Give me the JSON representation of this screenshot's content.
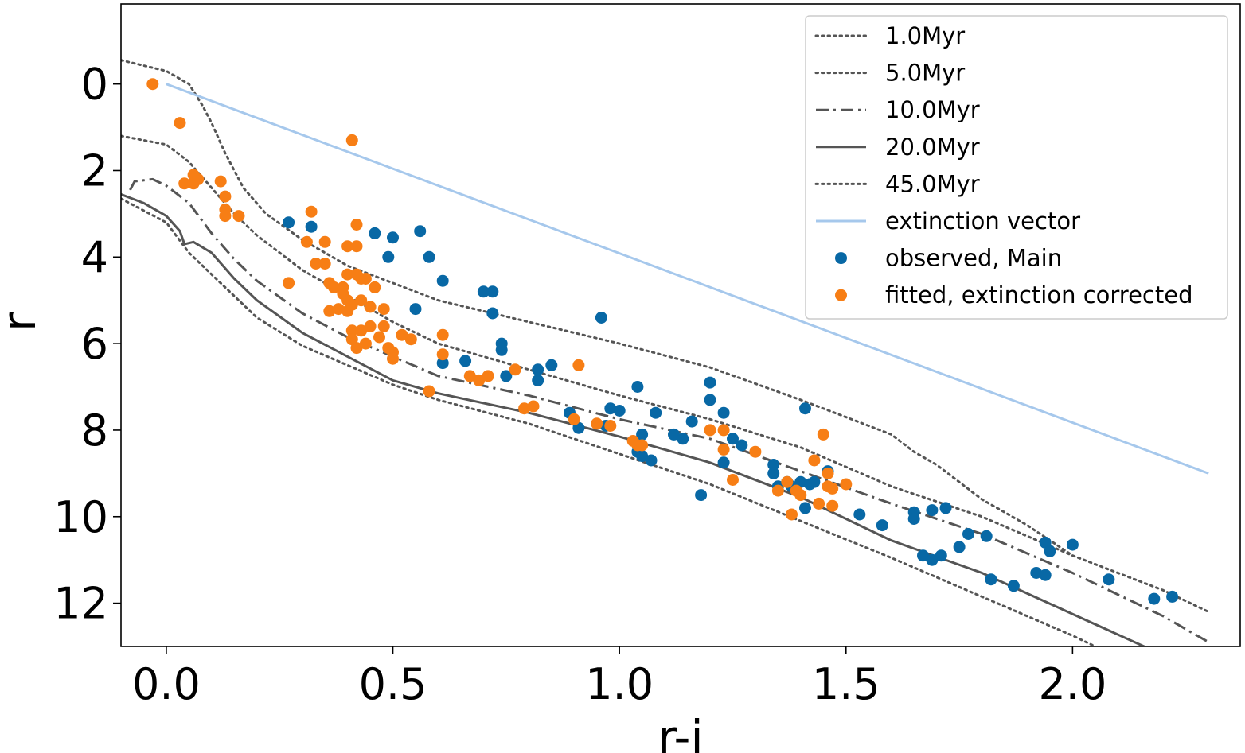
{
  "chart_data": {
    "type": "scatter",
    "title": "",
    "xlabel": "r-i",
    "ylabel": "r",
    "xlim": [
      -0.1,
      2.37
    ],
    "ylim": [
      13.0,
      -1.85
    ],
    "y_inverted": true,
    "legend_position": "upper right",
    "x_ticks": [
      0.0,
      0.5,
      1.0,
      1.5,
      2.0
    ],
    "x_tick_labels": [
      "0.0",
      "0.5",
      "1.0",
      "1.5",
      "2.0"
    ],
    "y_ticks": [
      0,
      2,
      4,
      6,
      8,
      10,
      12
    ],
    "y_tick_labels": [
      "0",
      "2",
      "4",
      "6",
      "8",
      "10",
      "12"
    ],
    "colors": {
      "isochrone": "#555555",
      "extinction": "#a6c8ec",
      "observed": "#0868a5",
      "fitted": "#f77e15"
    },
    "lines": [
      {
        "name": "1.0Myr",
        "style": "dotted",
        "points": [
          [
            -0.1,
            -0.55
          ],
          [
            0.0,
            -0.3
          ],
          [
            0.05,
            0.0
          ],
          [
            0.08,
            0.5
          ],
          [
            0.1,
            0.9
          ],
          [
            0.13,
            1.6
          ],
          [
            0.17,
            2.4
          ],
          [
            0.22,
            3.0
          ],
          [
            0.3,
            3.6
          ],
          [
            0.4,
            4.2
          ],
          [
            0.5,
            4.6
          ],
          [
            0.6,
            5.0
          ],
          [
            0.8,
            5.5
          ],
          [
            1.0,
            6.0
          ],
          [
            1.2,
            6.55
          ],
          [
            1.4,
            7.3
          ],
          [
            1.5,
            7.7
          ],
          [
            1.6,
            8.1
          ],
          [
            1.65,
            8.5
          ],
          [
            1.7,
            8.8
          ],
          [
            1.8,
            9.6
          ],
          [
            1.9,
            10.2
          ],
          [
            2.0,
            10.9
          ]
        ]
      },
      {
        "name": "5.0Myr",
        "style": "dotted",
        "points": [
          [
            -0.1,
            1.2
          ],
          [
            0.0,
            1.4
          ],
          [
            0.05,
            1.8
          ],
          [
            0.1,
            2.4
          ],
          [
            0.15,
            3.0
          ],
          [
            0.2,
            3.5
          ],
          [
            0.3,
            4.3
          ],
          [
            0.4,
            4.9
          ],
          [
            0.5,
            5.5
          ],
          [
            0.6,
            6.0
          ],
          [
            0.7,
            6.3
          ],
          [
            0.8,
            6.6
          ],
          [
            1.0,
            7.2
          ],
          [
            1.2,
            7.75
          ],
          [
            1.4,
            8.4
          ],
          [
            1.6,
            9.3
          ],
          [
            1.8,
            10.0
          ],
          [
            2.0,
            10.9
          ],
          [
            2.2,
            11.7
          ],
          [
            2.3,
            12.2
          ]
        ]
      },
      {
        "name": "10.0Myr",
        "style": "dashdot",
        "points": [
          [
            -0.08,
            2.45
          ],
          [
            -0.07,
            2.25
          ],
          [
            -0.03,
            2.2
          ],
          [
            0.0,
            2.35
          ],
          [
            0.05,
            2.75
          ],
          [
            0.1,
            3.45
          ],
          [
            0.15,
            4.05
          ],
          [
            0.2,
            4.55
          ],
          [
            0.3,
            5.3
          ],
          [
            0.4,
            5.85
          ],
          [
            0.5,
            6.3
          ],
          [
            0.6,
            6.75
          ],
          [
            0.8,
            7.2
          ],
          [
            1.0,
            7.75
          ],
          [
            1.2,
            8.2
          ],
          [
            1.4,
            8.95
          ],
          [
            1.6,
            9.7
          ],
          [
            1.8,
            10.4
          ],
          [
            2.0,
            11.3
          ],
          [
            2.2,
            12.3
          ],
          [
            2.3,
            12.9
          ]
        ]
      },
      {
        "name": "20.0Myr",
        "style": "solid",
        "points": [
          [
            -0.1,
            2.55
          ],
          [
            -0.05,
            2.75
          ],
          [
            0.0,
            3.05
          ],
          [
            0.03,
            3.4
          ],
          [
            0.04,
            3.7
          ],
          [
            0.06,
            3.65
          ],
          [
            0.1,
            3.9
          ],
          [
            0.15,
            4.5
          ],
          [
            0.2,
            5.0
          ],
          [
            0.3,
            5.75
          ],
          [
            0.4,
            6.3
          ],
          [
            0.5,
            6.85
          ],
          [
            0.6,
            7.15
          ],
          [
            0.8,
            7.6
          ],
          [
            1.0,
            8.15
          ],
          [
            1.2,
            8.75
          ],
          [
            1.4,
            9.55
          ],
          [
            1.6,
            10.55
          ],
          [
            1.8,
            11.3
          ],
          [
            2.0,
            12.25
          ],
          [
            2.2,
            13.2
          ]
        ]
      },
      {
        "name": "45.0Myr",
        "style": "dotted",
        "points": [
          [
            -0.1,
            2.65
          ],
          [
            0.0,
            3.2
          ],
          [
            0.05,
            3.9
          ],
          [
            0.1,
            4.4
          ],
          [
            0.2,
            5.4
          ],
          [
            0.3,
            6.05
          ],
          [
            0.4,
            6.5
          ],
          [
            0.5,
            6.95
          ],
          [
            0.6,
            7.3
          ],
          [
            0.8,
            7.85
          ],
          [
            1.0,
            8.55
          ],
          [
            1.2,
            9.25
          ],
          [
            1.4,
            10.1
          ],
          [
            1.6,
            10.95
          ],
          [
            1.8,
            11.85
          ],
          [
            2.0,
            12.75
          ],
          [
            2.05,
            13.0
          ]
        ]
      },
      {
        "name": "extinction vector",
        "style": "extinction",
        "points": [
          [
            0.0,
            0.0
          ],
          [
            2.3,
            9.0
          ]
        ]
      }
    ],
    "series": [
      {
        "name": "observed, Main",
        "kind": "scatter",
        "points": [
          [
            0.27,
            3.2
          ],
          [
            0.32,
            3.3
          ],
          [
            0.46,
            3.45
          ],
          [
            0.49,
            4.0
          ],
          [
            0.5,
            3.55
          ],
          [
            0.56,
            3.4
          ],
          [
            0.58,
            4.0
          ],
          [
            0.55,
            5.2
          ],
          [
            0.61,
            4.55
          ],
          [
            0.61,
            6.45
          ],
          [
            0.66,
            6.4
          ],
          [
            0.7,
            4.8
          ],
          [
            0.72,
            4.8
          ],
          [
            0.72,
            5.3
          ],
          [
            0.74,
            6.0
          ],
          [
            0.74,
            6.15
          ],
          [
            0.75,
            6.75
          ],
          [
            0.82,
            6.6
          ],
          [
            0.82,
            6.85
          ],
          [
            0.85,
            6.5
          ],
          [
            0.89,
            7.6
          ],
          [
            0.91,
            7.95
          ],
          [
            0.96,
            5.4
          ],
          [
            0.97,
            7.9
          ],
          [
            0.98,
            7.5
          ],
          [
            1.0,
            7.55
          ],
          [
            1.04,
            7.0
          ],
          [
            1.04,
            8.5
          ],
          [
            1.05,
            8.1
          ],
          [
            1.05,
            8.6
          ],
          [
            1.07,
            8.7
          ],
          [
            1.08,
            7.6
          ],
          [
            1.12,
            8.1
          ],
          [
            1.14,
            8.2
          ],
          [
            1.16,
            7.8
          ],
          [
            1.18,
            9.5
          ],
          [
            1.2,
            6.9
          ],
          [
            1.2,
            7.3
          ],
          [
            1.23,
            7.6
          ],
          [
            1.23,
            8.75
          ],
          [
            1.25,
            8.2
          ],
          [
            1.27,
            8.35
          ],
          [
            1.34,
            8.8
          ],
          [
            1.34,
            9.0
          ],
          [
            1.35,
            9.3
          ],
          [
            1.37,
            9.2
          ],
          [
            1.38,
            9.3
          ],
          [
            1.4,
            9.2
          ],
          [
            1.41,
            7.5
          ],
          [
            1.41,
            9.8
          ],
          [
            1.42,
            9.25
          ],
          [
            1.43,
            9.2
          ],
          [
            1.46,
            8.95
          ],
          [
            1.53,
            9.95
          ],
          [
            1.58,
            10.2
          ],
          [
            1.65,
            9.9
          ],
          [
            1.65,
            10.05
          ],
          [
            1.67,
            10.9
          ],
          [
            1.69,
            11.0
          ],
          [
            1.69,
            9.85
          ],
          [
            1.71,
            10.9
          ],
          [
            1.72,
            9.8
          ],
          [
            1.75,
            10.7
          ],
          [
            1.77,
            10.4
          ],
          [
            1.81,
            10.45
          ],
          [
            1.82,
            11.45
          ],
          [
            1.87,
            11.6
          ],
          [
            1.92,
            11.3
          ],
          [
            1.94,
            11.35
          ],
          [
            1.94,
            10.6
          ],
          [
            1.95,
            10.8
          ],
          [
            2.0,
            10.65
          ],
          [
            2.08,
            11.45
          ],
          [
            2.18,
            11.9
          ],
          [
            2.22,
            11.85
          ]
        ]
      },
      {
        "name": "fitted, extinction corrected",
        "kind": "scatter",
        "points": [
          [
            -0.03,
            0.0
          ],
          [
            0.03,
            0.9
          ],
          [
            0.04,
            2.3
          ],
          [
            0.06,
            2.3
          ],
          [
            0.06,
            2.1
          ],
          [
            0.07,
            2.2
          ],
          [
            0.12,
            2.25
          ],
          [
            0.13,
            2.6
          ],
          [
            0.13,
            2.9
          ],
          [
            0.13,
            3.05
          ],
          [
            0.16,
            3.05
          ],
          [
            0.41,
            1.3
          ],
          [
            0.27,
            4.6
          ],
          [
            0.31,
            3.65
          ],
          [
            0.32,
            2.95
          ],
          [
            0.33,
            4.15
          ],
          [
            0.35,
            3.65
          ],
          [
            0.35,
            4.15
          ],
          [
            0.36,
            4.6
          ],
          [
            0.36,
            5.25
          ],
          [
            0.37,
            4.7
          ],
          [
            0.38,
            5.2
          ],
          [
            0.39,
            4.7
          ],
          [
            0.39,
            4.85
          ],
          [
            0.4,
            4.4
          ],
          [
            0.4,
            5.0
          ],
          [
            0.4,
            5.25
          ],
          [
            0.4,
            3.75
          ],
          [
            0.41,
            5.1
          ],
          [
            0.41,
            5.7
          ],
          [
            0.41,
            5.9
          ],
          [
            0.42,
            6.1
          ],
          [
            0.42,
            3.25
          ],
          [
            0.42,
            3.75
          ],
          [
            0.42,
            4.4
          ],
          [
            0.43,
            4.5
          ],
          [
            0.43,
            5.0
          ],
          [
            0.43,
            5.7
          ],
          [
            0.44,
            6.0
          ],
          [
            0.44,
            4.5
          ],
          [
            0.45,
            5.6
          ],
          [
            0.45,
            5.15
          ],
          [
            0.46,
            4.7
          ],
          [
            0.47,
            5.85
          ],
          [
            0.48,
            5.6
          ],
          [
            0.48,
            5.2
          ],
          [
            0.49,
            6.1
          ],
          [
            0.5,
            6.2
          ],
          [
            0.5,
            6.35
          ],
          [
            0.52,
            5.8
          ],
          [
            0.54,
            5.9
          ],
          [
            0.58,
            7.1
          ],
          [
            0.61,
            5.8
          ],
          [
            0.61,
            6.25
          ],
          [
            0.67,
            6.75
          ],
          [
            0.69,
            6.85
          ],
          [
            0.71,
            6.75
          ],
          [
            0.77,
            6.6
          ],
          [
            0.79,
            7.5
          ],
          [
            0.81,
            7.45
          ],
          [
            0.9,
            7.75
          ],
          [
            0.91,
            6.5
          ],
          [
            0.95,
            7.85
          ],
          [
            0.98,
            7.9
          ],
          [
            1.03,
            8.25
          ],
          [
            1.04,
            8.35
          ],
          [
            1.05,
            8.35
          ],
          [
            1.2,
            8.0
          ],
          [
            1.23,
            8.0
          ],
          [
            1.23,
            8.45
          ],
          [
            1.25,
            9.15
          ],
          [
            1.3,
            8.5
          ],
          [
            1.35,
            9.4
          ],
          [
            1.37,
            9.2
          ],
          [
            1.38,
            9.95
          ],
          [
            1.39,
            9.4
          ],
          [
            1.4,
            9.5
          ],
          [
            1.43,
            8.7
          ],
          [
            1.44,
            9.7
          ],
          [
            1.45,
            8.1
          ],
          [
            1.46,
            9.0
          ],
          [
            1.46,
            9.3
          ],
          [
            1.47,
            9.35
          ],
          [
            1.47,
            9.75
          ],
          [
            1.5,
            9.25
          ]
        ]
      }
    ],
    "legend": [
      {
        "label": "1.0Myr",
        "style": "dotted"
      },
      {
        "label": "5.0Myr",
        "style": "dotted"
      },
      {
        "label": "10.0Myr",
        "style": "dashdot"
      },
      {
        "label": "20.0Myr",
        "style": "solid"
      },
      {
        "label": "45.0Myr",
        "style": "dotted"
      },
      {
        "label": "extinction vector",
        "style": "extinction"
      },
      {
        "label": "observed, Main",
        "style": "observed"
      },
      {
        "label": "fitted, extinction corrected",
        "style": "fitted"
      }
    ]
  }
}
